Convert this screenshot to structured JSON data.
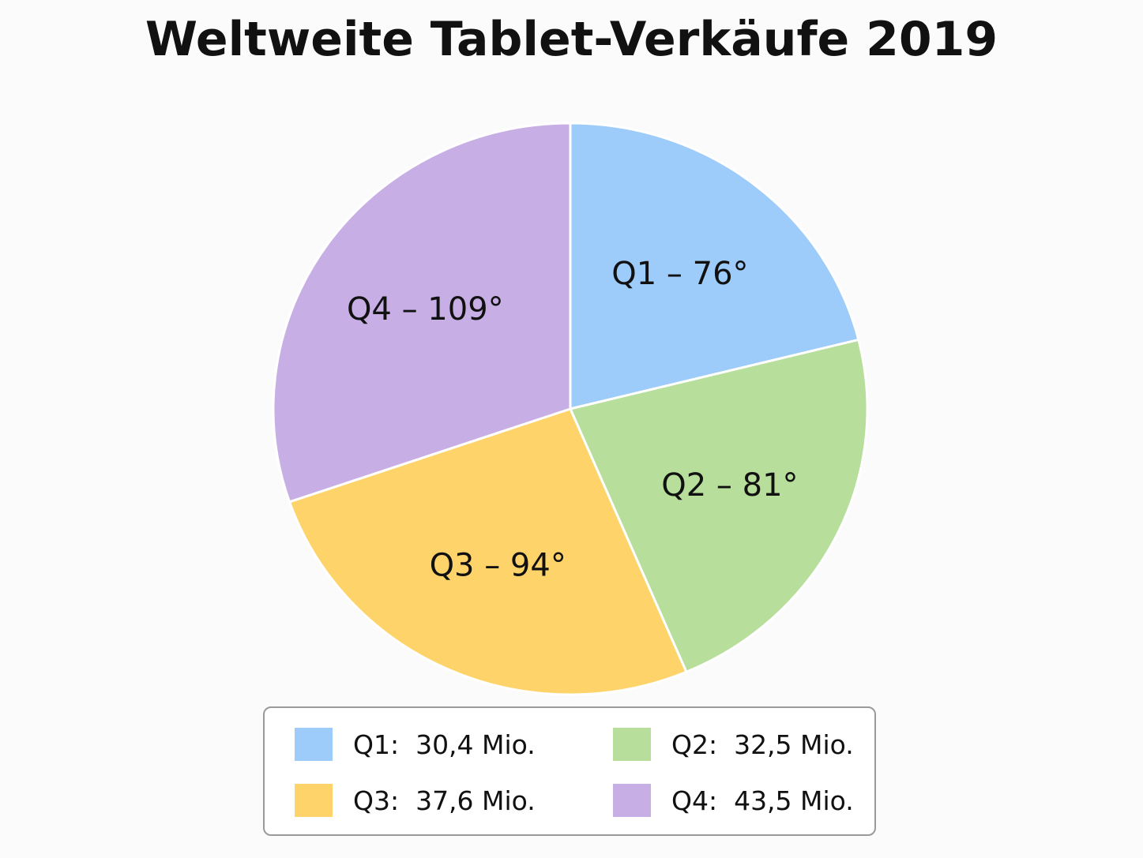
{
  "chart_data": {
    "type": "pie",
    "title": "Weltweite Tablet-Verkäufe 2019",
    "slices": [
      {
        "label": "Q1",
        "degrees": 76,
        "value": 30.4,
        "slice_text": "Q1 – 76°",
        "legend_text": "Q1:  30,4 Mio.",
        "color": "#9dcbfa"
      },
      {
        "label": "Q2",
        "degrees": 81,
        "value": 32.5,
        "slice_text": "Q2 – 81°",
        "legend_text": "Q2:  32,5 Mio.",
        "color": "#b7de9b"
      },
      {
        "label": "Q3",
        "degrees": 94,
        "value": 37.6,
        "slice_text": "Q3 – 94°",
        "legend_text": "Q3:  37,6 Mio.",
        "color": "#fed36a"
      },
      {
        "label": "Q4",
        "degrees": 109,
        "value": 43.5,
        "slice_text": "Q4 – 109°",
        "legend_text": "Q4:  43,5 Mio.",
        "color": "#c7afe5"
      }
    ],
    "start_angle": "12 o'clock",
    "direction": "clockwise",
    "legend_position": "bottom"
  }
}
